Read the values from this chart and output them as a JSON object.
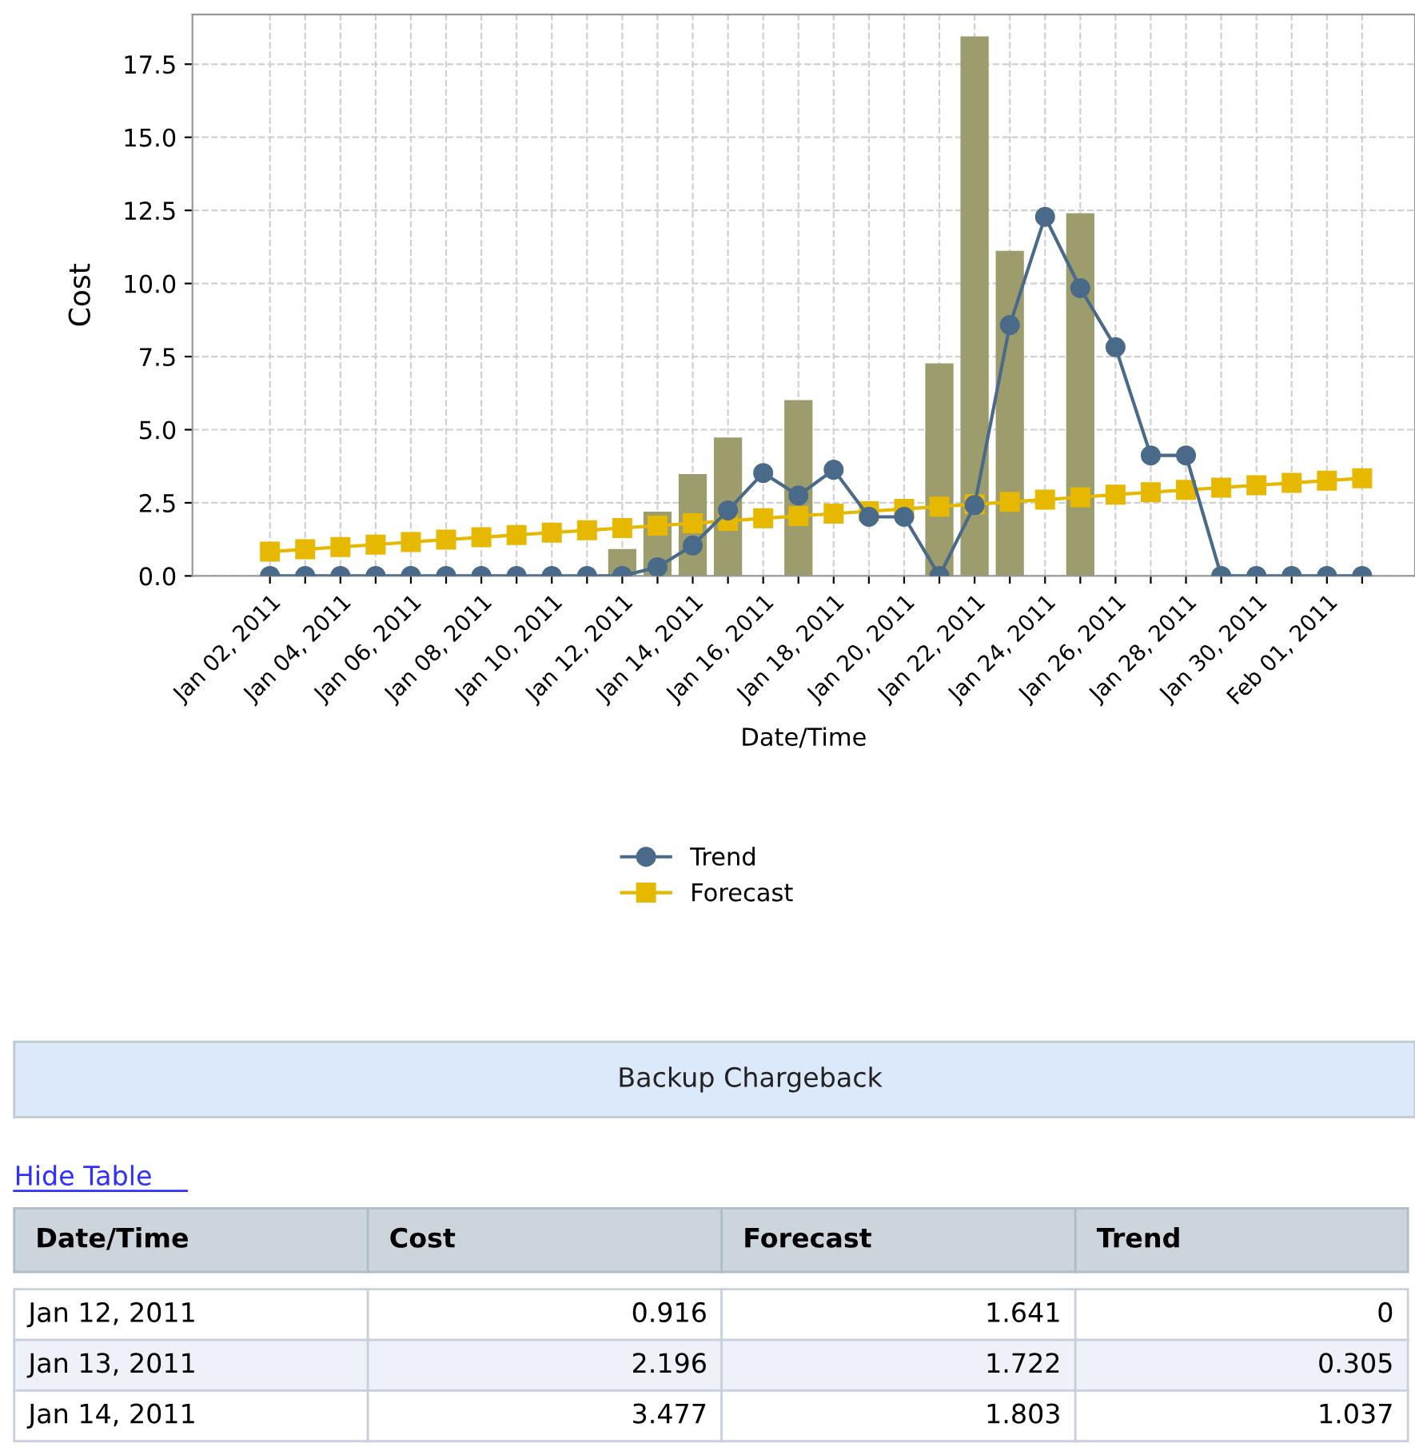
{
  "chart_data": {
    "type": "bar",
    "xlabel": "Date/Time",
    "ylabel": "Cost",
    "categories": [
      "Jan 02, 2011",
      null,
      "Jan 04, 2011",
      null,
      "Jan 06, 2011",
      null,
      "Jan 08, 2011",
      null,
      "Jan 10, 2011",
      null,
      "Jan 12, 2011",
      null,
      "Jan 14, 2011",
      null,
      "Jan 16, 2011",
      null,
      "Jan 18, 2011",
      null,
      "Jan 20, 2011",
      null,
      "Jan 22, 2011",
      null,
      "Jan 24, 2011",
      null,
      "Jan 26, 2011",
      null,
      "Jan 28, 2011",
      null,
      "Jan 30, 2011",
      null,
      "Feb 01, 2011",
      null
    ],
    "series": [
      {
        "color": "#9c9c6c",
        "values": [
          0,
          0,
          0,
          0,
          0,
          0,
          0,
          0,
          0,
          0,
          0.92,
          2.2,
          3.48,
          4.73,
          0,
          6.01,
          0,
          0,
          0,
          7.27,
          18.45,
          11.12,
          0,
          12.4,
          0,
          0,
          0,
          0,
          0,
          0,
          0,
          0
        ]
      },
      {
        "type": "line",
        "name": "Trend",
        "color": "#4a6a8a",
        "marker": "circle",
        "values": [
          0,
          0,
          0,
          0,
          0,
          0,
          0,
          0,
          0,
          0,
          0,
          0.3,
          1.04,
          2.24,
          3.52,
          2.75,
          3.63,
          2.02,
          2.02,
          0,
          2.42,
          8.58,
          12.28,
          9.84,
          7.82,
          4.12,
          4.12,
          0,
          0,
          0,
          0,
          0
        ]
      },
      {
        "type": "line",
        "name": "Forecast",
        "color": "#e6b800",
        "marker": "square",
        "values": [
          0.83,
          0.91,
          0.99,
          1.07,
          1.16,
          1.24,
          1.32,
          1.4,
          1.48,
          1.56,
          1.64,
          1.72,
          1.8,
          1.88,
          1.97,
          2.05,
          2.13,
          2.21,
          2.29,
          2.37,
          2.45,
          2.53,
          2.61,
          2.69,
          2.78,
          2.86,
          2.94,
          3.02,
          3.1,
          3.18,
          3.26,
          3.34
        ]
      }
    ],
    "ylim": [
      0,
      19.2
    ],
    "yticks": [
      {
        "value": 0,
        "label": "0.0"
      },
      {
        "value": 2.5,
        "label": "2.5"
      },
      {
        "value": 5,
        "label": "5.0"
      },
      {
        "value": 7.5,
        "label": "7.5"
      },
      {
        "value": 10,
        "label": "10.0"
      },
      {
        "value": 12.5,
        "label": "12.5"
      },
      {
        "value": 15,
        "label": "15.0"
      },
      {
        "value": 17.5,
        "label": "17.5"
      }
    ],
    "grid": true,
    "legend": "bottom",
    "line_style": "solid",
    "annotations": [
      "Backup Chargeback",
      "Hide Table",
      "Date/Time",
      "Cost",
      "Forecast",
      "Trend",
      "Jan 12, 2011",
      "0.916",
      "1.641",
      "0",
      "Jan 13, 2011",
      "2.196",
      "1.722",
      "0.305",
      "Jan 14, 2011",
      "3.477",
      "1.803",
      "1.037"
    ]
  }
}
